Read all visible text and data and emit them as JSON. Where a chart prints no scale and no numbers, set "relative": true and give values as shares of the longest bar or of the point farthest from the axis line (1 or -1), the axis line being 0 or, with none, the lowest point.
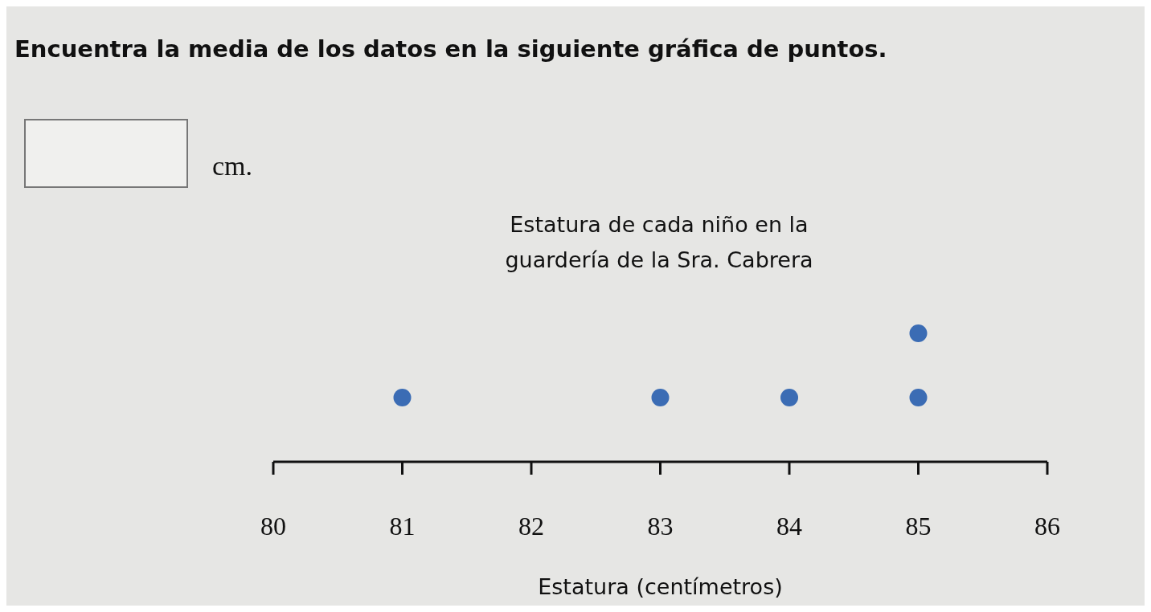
{
  "chart_data": {
    "type": "scatter",
    "title": "Estatura de cada niño en la guardería de la Sra. Cabrera",
    "xlabel": "Estatura (centímetros)",
    "annotations": [
      "Encuentra la media de los datos en la siguiente gráfica de puntos.",
      "cm."
    ],
    "x": [
      81,
      83,
      84,
      85,
      85
    ],
    "values": [
      0.5,
      0.5,
      0.5,
      0.5,
      1
    ],
    "color": "#3b6cb4",
    "relative": true,
    "marker": "circle",
    "tick_labels": "x",
    "xlim": [
      80,
      86
    ],
    "xticks": [
      80,
      81,
      82,
      83,
      84,
      85,
      86
    ]
  }
}
